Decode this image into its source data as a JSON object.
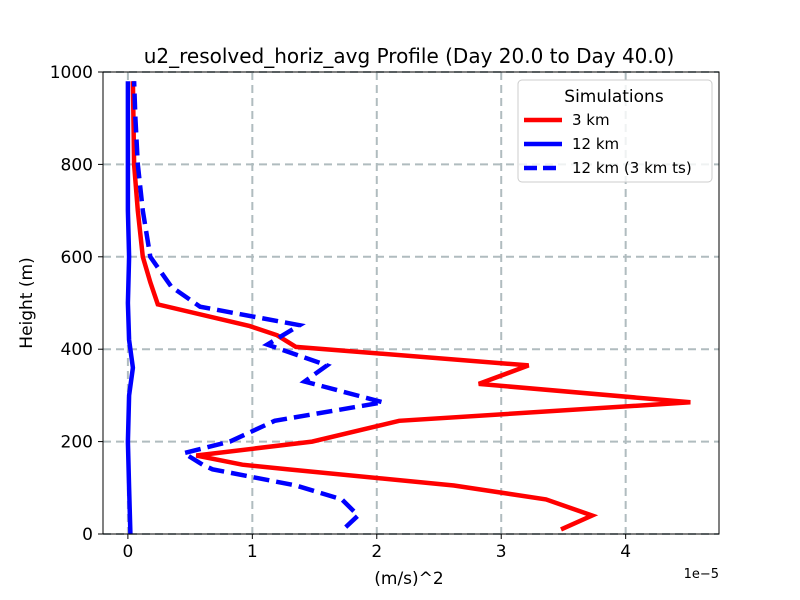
{
  "chart_data": {
    "type": "line",
    "title": "u2_resolved_horiz_avg Profile (Day 20.0 to Day 40.0)",
    "xlabel": "(m/s)^2",
    "ylabel": "Height (m)",
    "x_offset_text": "1e−5",
    "xlim": [
      -0.2,
      4.75
    ],
    "ylim": [
      0,
      1000
    ],
    "xticks": [
      0,
      1,
      2,
      3,
      4
    ],
    "yticks": [
      0,
      200,
      400,
      600,
      800,
      1000
    ],
    "grid": true,
    "legend": {
      "title": "Simulations",
      "position": "upper right"
    },
    "series": [
      {
        "name": "3 km",
        "color": "#ff0000",
        "style": "solid",
        "points": [
          [
            3.48,
            10
          ],
          [
            3.73,
            40
          ],
          [
            3.36,
            75
          ],
          [
            2.62,
            105
          ],
          [
            1.28,
            140
          ],
          [
            0.92,
            150
          ],
          [
            0.55,
            170
          ],
          [
            1.48,
            200
          ],
          [
            2.18,
            245
          ],
          [
            4.52,
            285
          ],
          [
            2.82,
            325
          ],
          [
            3.22,
            365
          ],
          [
            1.35,
            405
          ],
          [
            1.2,
            430
          ],
          [
            0.98,
            450
          ],
          [
            0.24,
            497
          ],
          [
            0.18,
            545
          ],
          [
            0.12,
            600
          ],
          [
            0.08,
            700
          ],
          [
            0.05,
            800
          ],
          [
            0.04,
            980
          ]
        ]
      },
      {
        "name": "12 km",
        "color": "#0000ff",
        "style": "solid",
        "points": [
          [
            0.02,
            0
          ],
          [
            0.01,
            100
          ],
          [
            0.0,
            200
          ],
          [
            0.01,
            300
          ],
          [
            0.04,
            360
          ],
          [
            0.01,
            420
          ],
          [
            0.0,
            500
          ],
          [
            0.01,
            600
          ],
          [
            0.0,
            700
          ],
          [
            0.0,
            850
          ],
          [
            0.0,
            980
          ]
        ]
      },
      {
        "name": "12 km (3 km ts)",
        "color": "#0000ff",
        "style": "dashed",
        "points": [
          [
            1.75,
            15
          ],
          [
            1.85,
            40
          ],
          [
            1.72,
            75
          ],
          [
            1.35,
            105
          ],
          [
            0.68,
            140
          ],
          [
            0.6,
            150
          ],
          [
            0.45,
            175
          ],
          [
            0.82,
            200
          ],
          [
            1.18,
            245
          ],
          [
            2.05,
            285
          ],
          [
            1.42,
            330
          ],
          [
            1.6,
            365
          ],
          [
            1.12,
            410
          ],
          [
            1.38,
            452
          ],
          [
            0.58,
            492
          ],
          [
            0.35,
            535
          ],
          [
            0.18,
            600
          ],
          [
            0.12,
            700
          ],
          [
            0.08,
            800
          ],
          [
            0.06,
            900
          ],
          [
            0.05,
            980
          ]
        ]
      }
    ]
  }
}
